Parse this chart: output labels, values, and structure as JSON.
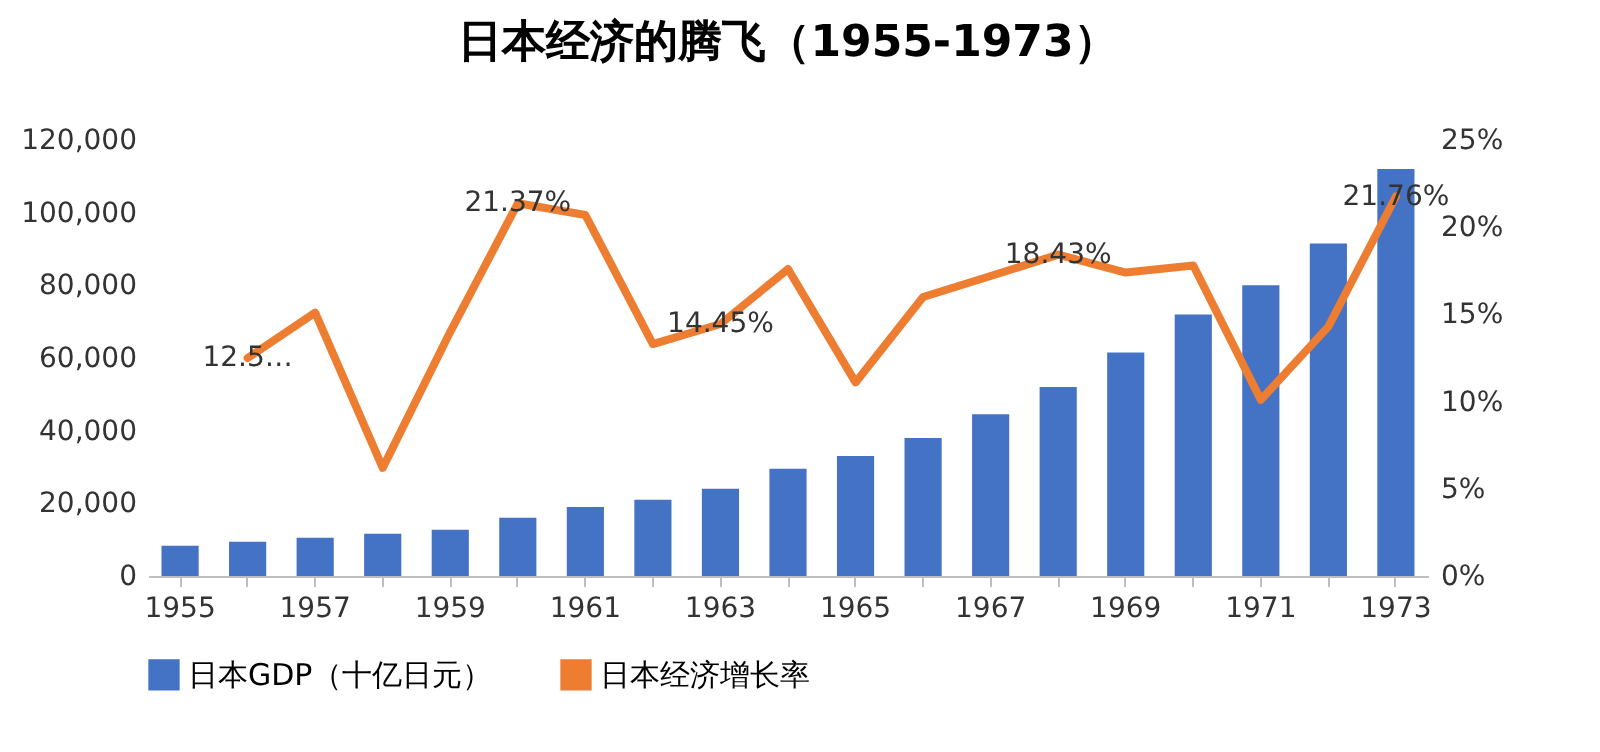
{
  "chart_data": {
    "type": "bar",
    "title": "日本经济的腾飞（1955-1973）",
    "categories": [
      "1955",
      null,
      "1957",
      null,
      "1959",
      null,
      "1961",
      null,
      "1963",
      null,
      "1965",
      null,
      "1967",
      null,
      "1969",
      null,
      "1971",
      null,
      "1973"
    ],
    "series": [
      {
        "name": "日本GDP（十亿日元）",
        "color": "#4472c4",
        "values": [
          8300,
          9400,
          10500,
          11600,
          12700,
          16000,
          19000,
          21000,
          24000,
          29500,
          33000,
          38000,
          44500,
          52000,
          61500,
          72000,
          80000,
          91500,
          112000
        ]
      },
      {
        "name": "日本经济增长率",
        "type": "line",
        "axis": "y2",
        "color": "#ed7d31",
        "values": [
          null,
          12.5,
          15.1,
          6.2,
          14.0,
          21.37,
          20.7,
          13.3,
          14.45,
          17.6,
          11.1,
          16.0,
          17.2,
          18.43,
          17.4,
          17.8,
          10.1,
          14.3,
          21.76
        ],
        "value_labels": [
          null,
          "12.5…",
          null,
          null,
          null,
          "21.37%",
          null,
          null,
          "14.45%",
          null,
          null,
          null,
          null,
          "18.43%",
          null,
          null,
          null,
          null,
          "21.76%"
        ]
      }
    ],
    "ylim": [
      0,
      120000
    ],
    "yticks": [
      {
        "value": 0,
        "label": "0"
      },
      {
        "value": 20000,
        "label": "20,000"
      },
      {
        "value": 40000,
        "label": "40,000"
      },
      {
        "value": 60000,
        "label": "60,000"
      },
      {
        "value": 80000,
        "label": "80,000"
      },
      {
        "value": 100000,
        "label": "100,000"
      },
      {
        "value": 120000,
        "label": "120,000"
      }
    ],
    "y2lim": [
      0,
      25
    ],
    "y2ticks": [
      {
        "value": 0,
        "label": "0%"
      },
      {
        "value": 5,
        "label": "5%"
      },
      {
        "value": 10,
        "label": "10%"
      },
      {
        "value": 15,
        "label": "15%"
      },
      {
        "value": 20,
        "label": "20%"
      },
      {
        "value": 25,
        "label": "25%"
      }
    ],
    "grid": false,
    "legend": "bottom",
    "marker": "none",
    "line_style": "solid"
  }
}
